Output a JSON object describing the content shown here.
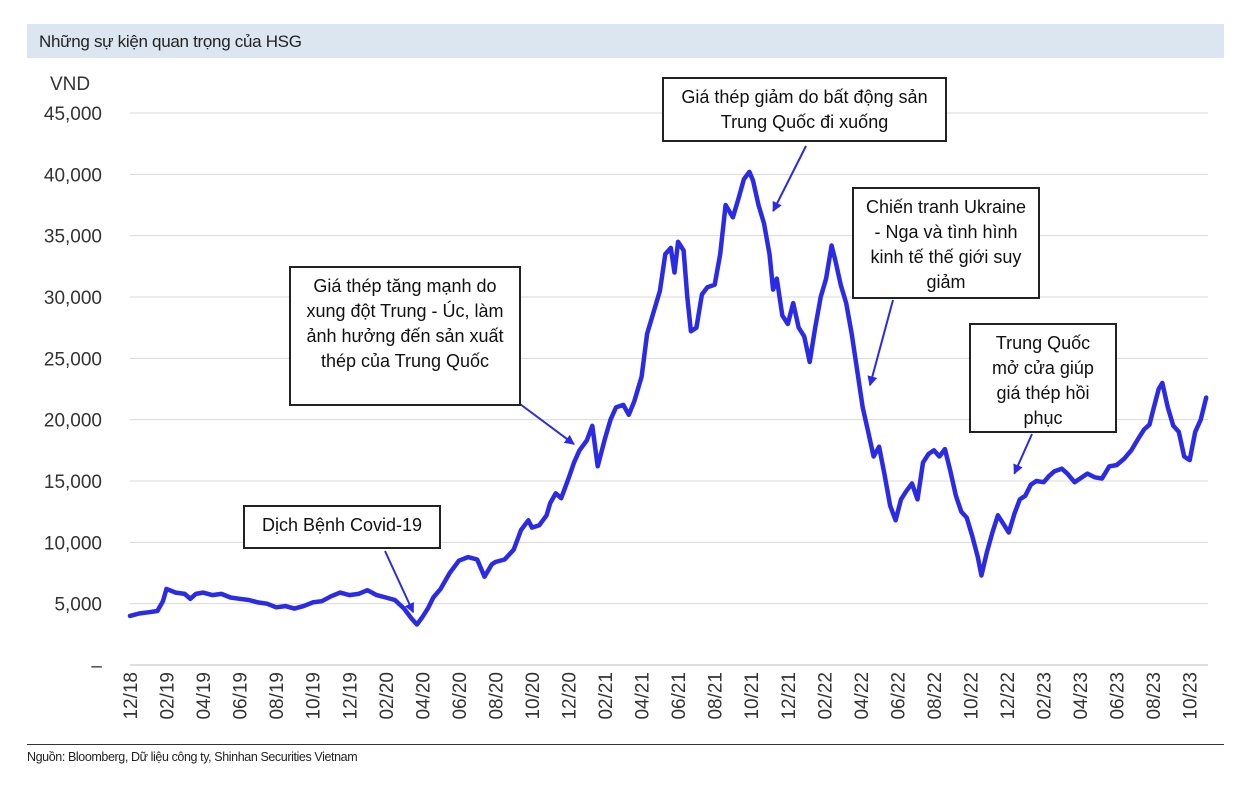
{
  "header": {
    "title": "Những sự kiện quan trọng của HSG"
  },
  "footer": {
    "source": "Nguồn: Bloomberg, Dữ liệu công ty, Shinhan Securities Vietnam"
  },
  "colors": {
    "line": "#2b2be6",
    "grid": "#d9d9d9",
    "arrow": "#2b2be6",
    "header_bg": "#dce6f1"
  },
  "chart_data": {
    "type": "line",
    "title": "Những sự kiện quan trọng của HSG",
    "ylabel": "VND",
    "xlabel": "",
    "ylim": [
      0,
      45000
    ],
    "yticks": [
      {
        "value": 0,
        "label": "–"
      },
      {
        "value": 5000,
        "label": "5,000"
      },
      {
        "value": 10000,
        "label": "10,000"
      },
      {
        "value": 15000,
        "label": "15,000"
      },
      {
        "value": 20000,
        "label": "20,000"
      },
      {
        "value": 25000,
        "label": "25,000"
      },
      {
        "value": 30000,
        "label": "30,000"
      },
      {
        "value": 35000,
        "label": "35,000"
      },
      {
        "value": 40000,
        "label": "40,000"
      },
      {
        "value": 45000,
        "label": "45,000"
      }
    ],
    "xlim": [
      0,
      59
    ],
    "xticks": [
      {
        "value": 0,
        "label": "12/18"
      },
      {
        "value": 2,
        "label": "02/19"
      },
      {
        "value": 4,
        "label": "04/19"
      },
      {
        "value": 6,
        "label": "06/19"
      },
      {
        "value": 8,
        "label": "08/19"
      },
      {
        "value": 10,
        "label": "10/19"
      },
      {
        "value": 12,
        "label": "12/19"
      },
      {
        "value": 14,
        "label": "02/20"
      },
      {
        "value": 16,
        "label": "04/20"
      },
      {
        "value": 18,
        "label": "06/20"
      },
      {
        "value": 20,
        "label": "08/20"
      },
      {
        "value": 22,
        "label": "10/20"
      },
      {
        "value": 24,
        "label": "12/20"
      },
      {
        "value": 26,
        "label": "02/21"
      },
      {
        "value": 28,
        "label": "04/21"
      },
      {
        "value": 30,
        "label": "06/21"
      },
      {
        "value": 32,
        "label": "08/21"
      },
      {
        "value": 34,
        "label": "10/21"
      },
      {
        "value": 36,
        "label": "12/21"
      },
      {
        "value": 38,
        "label": "02/22"
      },
      {
        "value": 40,
        "label": "04/22"
      },
      {
        "value": 42,
        "label": "06/22"
      },
      {
        "value": 44,
        "label": "08/22"
      },
      {
        "value": 46,
        "label": "10/22"
      },
      {
        "value": 48,
        "label": "12/22"
      },
      {
        "value": 50,
        "label": "02/23"
      },
      {
        "value": 52,
        "label": "04/23"
      },
      {
        "value": 54,
        "label": "06/23"
      },
      {
        "value": 56,
        "label": "08/23"
      },
      {
        "value": 58,
        "label": "10/23"
      }
    ],
    "series": [
      {
        "points": [
          [
            0,
            4000
          ],
          [
            0.5,
            4200
          ],
          [
            1,
            4300
          ],
          [
            1.5,
            4400
          ],
          [
            1.8,
            5200
          ],
          [
            2,
            6200
          ],
          [
            2.5,
            5900
          ],
          [
            3,
            5800
          ],
          [
            3.3,
            5400
          ],
          [
            3.6,
            5800
          ],
          [
            4,
            5900
          ],
          [
            4.5,
            5700
          ],
          [
            5,
            5800
          ],
          [
            5.5,
            5500
          ],
          [
            6,
            5400
          ],
          [
            6.5,
            5300
          ],
          [
            7,
            5100
          ],
          [
            7.5,
            5000
          ],
          [
            8,
            4700
          ],
          [
            8.5,
            4800
          ],
          [
            9,
            4600
          ],
          [
            9.5,
            4800
          ],
          [
            10,
            5100
          ],
          [
            10.5,
            5200
          ],
          [
            11,
            5600
          ],
          [
            11.5,
            5900
          ],
          [
            12,
            5700
          ],
          [
            12.5,
            5800
          ],
          [
            13,
            6100
          ],
          [
            13.5,
            5700
          ],
          [
            14,
            5500
          ],
          [
            14.5,
            5300
          ],
          [
            15,
            4600
          ],
          [
            15.4,
            3800
          ],
          [
            15.7,
            3300
          ],
          [
            16,
            3900
          ],
          [
            16.3,
            4600
          ],
          [
            16.6,
            5500
          ],
          [
            17,
            6200
          ],
          [
            17.5,
            7500
          ],
          [
            18,
            8500
          ],
          [
            18.5,
            8800
          ],
          [
            19,
            8600
          ],
          [
            19.4,
            7200
          ],
          [
            19.8,
            8200
          ],
          [
            20,
            8400
          ],
          [
            20.5,
            8600
          ],
          [
            21,
            9400
          ],
          [
            21.4,
            11000
          ],
          [
            21.8,
            11800
          ],
          [
            22,
            11200
          ],
          [
            22.4,
            11400
          ],
          [
            22.8,
            12200
          ],
          [
            23,
            13200
          ],
          [
            23.3,
            14000
          ],
          [
            23.6,
            13600
          ],
          [
            24,
            15200
          ],
          [
            24.3,
            16500
          ],
          [
            24.6,
            17500
          ],
          [
            25,
            18300
          ],
          [
            25.3,
            19500
          ],
          [
            25.6,
            16200
          ],
          [
            26,
            18500
          ],
          [
            26.3,
            20000
          ],
          [
            26.6,
            21000
          ],
          [
            27,
            21200
          ],
          [
            27.3,
            20400
          ],
          [
            27.6,
            21500
          ],
          [
            28,
            23500
          ],
          [
            28.3,
            27000
          ],
          [
            28.6,
            28500
          ],
          [
            29,
            30500
          ],
          [
            29.3,
            33500
          ],
          [
            29.6,
            34000
          ],
          [
            29.8,
            32000
          ],
          [
            30,
            34500
          ],
          [
            30.3,
            33800
          ],
          [
            30.5,
            30000
          ],
          [
            30.7,
            27200
          ],
          [
            31,
            27500
          ],
          [
            31.3,
            30200
          ],
          [
            31.6,
            30800
          ],
          [
            32,
            31000
          ],
          [
            32.3,
            33500
          ],
          [
            32.6,
            37500
          ],
          [
            33,
            36500
          ],
          [
            33.3,
            38000
          ],
          [
            33.6,
            39600
          ],
          [
            33.9,
            40200
          ],
          [
            34.1,
            39500
          ],
          [
            34.4,
            37500
          ],
          [
            34.7,
            36000
          ],
          [
            35,
            33500
          ],
          [
            35.2,
            30600
          ],
          [
            35.4,
            31500
          ],
          [
            35.7,
            28500
          ],
          [
            36,
            27800
          ],
          [
            36.3,
            29500
          ],
          [
            36.6,
            27500
          ],
          [
            36.9,
            26800
          ],
          [
            37.2,
            24700
          ],
          [
            37.5,
            27500
          ],
          [
            37.8,
            30000
          ],
          [
            38.1,
            31500
          ],
          [
            38.4,
            34200
          ],
          [
            38.6,
            33000
          ],
          [
            38.9,
            31000
          ],
          [
            39.2,
            29500
          ],
          [
            39.5,
            27000
          ],
          [
            39.8,
            24000
          ],
          [
            40.1,
            21000
          ],
          [
            40.4,
            19000
          ],
          [
            40.7,
            17000
          ],
          [
            41,
            17800
          ],
          [
            41.3,
            15500
          ],
          [
            41.6,
            13000
          ],
          [
            41.9,
            11800
          ],
          [
            42.2,
            13500
          ],
          [
            42.5,
            14200
          ],
          [
            42.8,
            14800
          ],
          [
            43.1,
            13500
          ],
          [
            43.4,
            16500
          ],
          [
            43.7,
            17200
          ],
          [
            44,
            17500
          ],
          [
            44.3,
            17000
          ],
          [
            44.6,
            17600
          ],
          [
            44.9,
            15800
          ],
          [
            45.2,
            13800
          ],
          [
            45.5,
            12500
          ],
          [
            45.8,
            12000
          ],
          [
            46.1,
            10500
          ],
          [
            46.4,
            8800
          ],
          [
            46.6,
            7300
          ],
          [
            46.9,
            9200
          ],
          [
            47.2,
            10800
          ],
          [
            47.5,
            12200
          ],
          [
            47.8,
            11500
          ],
          [
            48.1,
            10800
          ],
          [
            48.4,
            12300
          ],
          [
            48.7,
            13500
          ],
          [
            49,
            13800
          ],
          [
            49.3,
            14700
          ],
          [
            49.6,
            15000
          ],
          [
            50,
            14900
          ],
          [
            50.3,
            15400
          ],
          [
            50.6,
            15800
          ],
          [
            51,
            16000
          ],
          [
            51.3,
            15600
          ],
          [
            51.7,
            14900
          ],
          [
            52,
            15200
          ],
          [
            52.4,
            15600
          ],
          [
            52.8,
            15300
          ],
          [
            53.2,
            15200
          ],
          [
            53.6,
            16200
          ],
          [
            54,
            16300
          ],
          [
            54.4,
            16800
          ],
          [
            54.8,
            17500
          ],
          [
            55.2,
            18500
          ],
          [
            55.5,
            19200
          ],
          [
            55.8,
            19600
          ],
          [
            56,
            20800
          ],
          [
            56.3,
            22500
          ],
          [
            56.5,
            23000
          ],
          [
            56.8,
            21000
          ],
          [
            57.1,
            19500
          ],
          [
            57.4,
            19000
          ],
          [
            57.7,
            17000
          ],
          [
            58,
            16700
          ],
          [
            58.3,
            19000
          ],
          [
            58.6,
            20000
          ],
          [
            58.9,
            21800
          ]
        ]
      }
    ],
    "annotations": [
      {
        "text": "Dịch Bệnh Covid-19",
        "x": 15.5,
        "y": 4300
      },
      {
        "text": "Giá thép tăng mạnh do xung đột Trung - Úc, làm ảnh hưởng đến sản xuất thép của Trung Quốc",
        "x": 24.3,
        "y": 18000
      },
      {
        "text": "Giá thép giảm do bất động sản Trung Quốc đi xuống",
        "x": 35.2,
        "y": 37000
      },
      {
        "text": "Chiến tranh Ukraine - Nga và tình hình kinh tế thế giới suy giảm",
        "x": 40.5,
        "y": 22800
      },
      {
        "text": "Trung Quốc mở cửa giúp giá thép hồi phục",
        "x": 48.4,
        "y": 15600
      }
    ]
  }
}
